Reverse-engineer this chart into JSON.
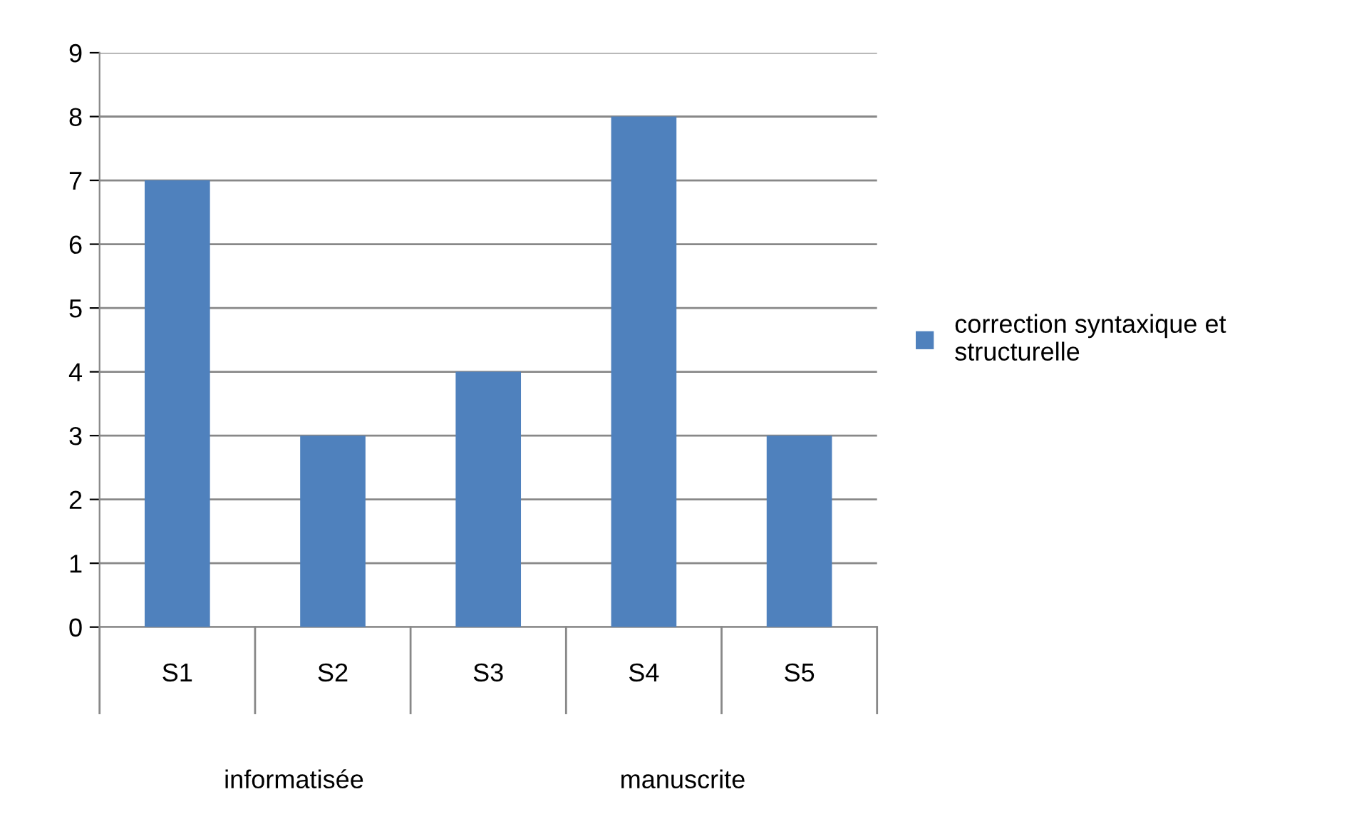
{
  "chart_data": {
    "type": "bar",
    "categories": [
      "S1",
      "S2",
      "S3",
      "S4",
      "S5"
    ],
    "series": [
      {
        "name": "correction syntaxique et structurelle",
        "color": "#4f81bd",
        "values": [
          7,
          3,
          4,
          8,
          3
        ]
      }
    ],
    "ylim": [
      0,
      9
    ],
    "yticks": [
      0,
      1,
      2,
      3,
      4,
      5,
      6,
      7,
      8,
      9
    ],
    "grid": "y",
    "legend": "right",
    "annotations": [
      "informatisée",
      "manuscrite"
    ]
  }
}
